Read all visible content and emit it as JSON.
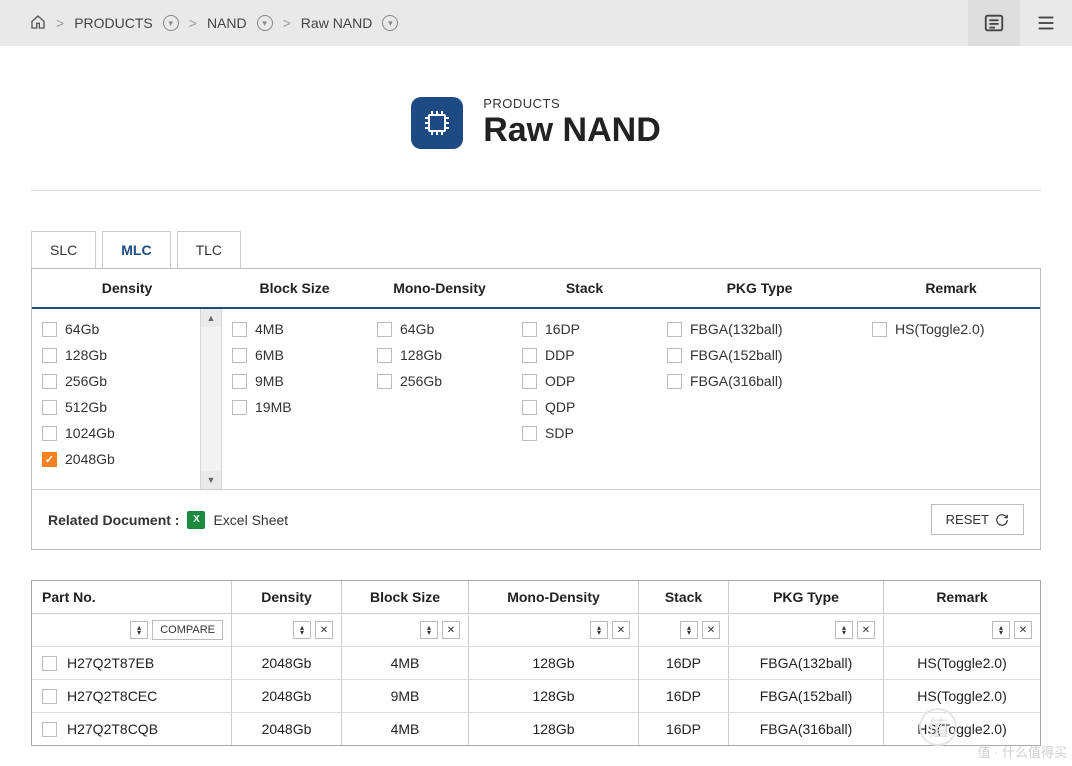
{
  "breadcrumb": {
    "items": [
      "PRODUCTS",
      "NAND",
      "Raw NAND"
    ]
  },
  "hero": {
    "category": "PRODUCTS",
    "title": "Raw NAND"
  },
  "tabs": [
    "SLC",
    "MLC",
    "TLC"
  ],
  "active_tab_index": 1,
  "filters": {
    "columns": [
      {
        "key": "density",
        "label": "Density",
        "scrollable": true,
        "options": [
          {
            "label": "64Gb",
            "checked": false
          },
          {
            "label": "128Gb",
            "checked": false
          },
          {
            "label": "256Gb",
            "checked": false
          },
          {
            "label": "512Gb",
            "checked": false
          },
          {
            "label": "1024Gb",
            "checked": false
          },
          {
            "label": "2048Gb",
            "checked": true
          }
        ]
      },
      {
        "key": "block",
        "label": "Block Size",
        "options": [
          {
            "label": "4MB"
          },
          {
            "label": "6MB"
          },
          {
            "label": "9MB"
          },
          {
            "label": "19MB"
          }
        ]
      },
      {
        "key": "mono",
        "label": "Mono-Density",
        "options": [
          {
            "label": "64Gb"
          },
          {
            "label": "128Gb"
          },
          {
            "label": "256Gb"
          }
        ]
      },
      {
        "key": "stack",
        "label": "Stack",
        "options": [
          {
            "label": "16DP"
          },
          {
            "label": "DDP"
          },
          {
            "label": "ODP"
          },
          {
            "label": "QDP"
          },
          {
            "label": "SDP"
          }
        ]
      },
      {
        "key": "pkg",
        "label": "PKG Type",
        "options": [
          {
            "label": "FBGA(132ball)"
          },
          {
            "label": "FBGA(152ball)"
          },
          {
            "label": "FBGA(316ball)"
          }
        ]
      },
      {
        "key": "remark",
        "label": "Remark",
        "options": [
          {
            "label": "HS(Toggle2.0)"
          }
        ]
      }
    ]
  },
  "related": {
    "label": "Related Document :",
    "link": "Excel Sheet",
    "reset": "RESET"
  },
  "results": {
    "columns": [
      "Part No.",
      "Density",
      "Block Size",
      "Mono-Density",
      "Stack",
      "PKG Type",
      "Remark"
    ],
    "compare_label": "COMPARE",
    "rows": [
      {
        "part": "H27Q2T87EB",
        "density": "2048Gb",
        "block": "4MB",
        "mono": "128Gb",
        "stack": "16DP",
        "pkg": "FBGA(132ball)",
        "remark": "HS(Toggle2.0)"
      },
      {
        "part": "H27Q2T8CEC",
        "density": "2048Gb",
        "block": "9MB",
        "mono": "128Gb",
        "stack": "16DP",
        "pkg": "FBGA(152ball)",
        "remark": "HS(Toggle2.0)"
      },
      {
        "part": "H27Q2T8CQB",
        "density": "2048Gb",
        "block": "4MB",
        "mono": "128Gb",
        "stack": "16DP",
        "pkg": "FBGA(316ball)",
        "remark": "HS(Toggle2.0)"
      }
    ]
  },
  "watermark": "值 · 什么值得买",
  "colors": {
    "accent": "#1e4a84",
    "highlight": "#f58220",
    "topbar": "#e9e9e9",
    "border": "#bbbbbb"
  }
}
